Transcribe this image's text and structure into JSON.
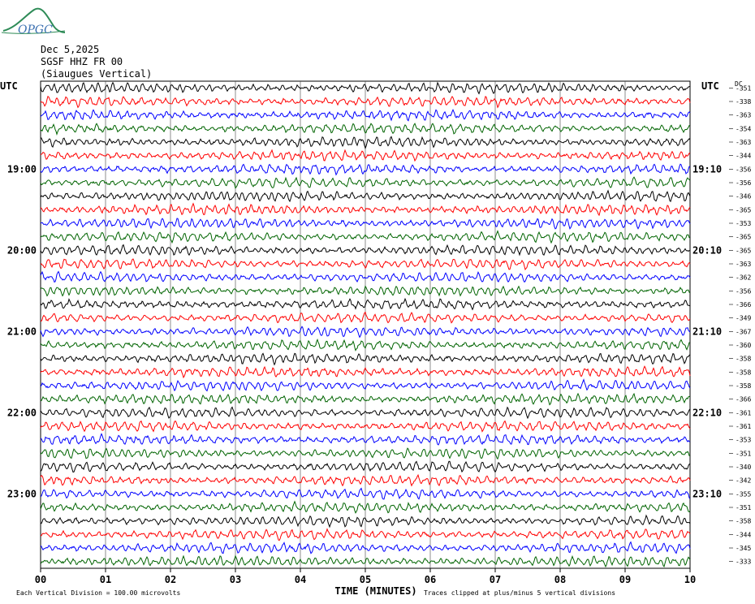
{
  "header": {
    "logo_text": "OPGC",
    "date": "Dec 5,2025",
    "station": "SGSF HHZ FR 00",
    "location": "(Siaugues Vertical)"
  },
  "axes": {
    "left_utc_label": "UTC",
    "right_utc_label": "UTC",
    "dc_label": "DC",
    "xlabel": "TIME (MINUTES)",
    "footer_left": "Each Vertical Division =  100.00 microvolts",
    "footer_right": "Traces clipped at plus/minus 5 vertical divisions"
  },
  "chart_data": {
    "type": "line",
    "title": "SGSF HHZ FR 00",
    "xlabel": "TIME (MINUTES)",
    "xlim": [
      0,
      10
    ],
    "x_ticks": [
      "00",
      "01",
      "02",
      "03",
      "04",
      "05",
      "06",
      "07",
      "08",
      "09",
      "10"
    ],
    "trace_colors": [
      "#000000",
      "#ff0000",
      "#0000ff",
      "#006400"
    ],
    "left_hour_labels": [
      "19:00",
      "20:00",
      "21:00",
      "22:00",
      "23:00"
    ],
    "right_hour_labels": [
      "19:10",
      "20:10",
      "21:10",
      "22:10",
      "23:10"
    ],
    "dc_offsets": [
      -351,
      -338,
      -363,
      -354,
      -363,
      -344,
      -356,
      -356,
      -346,
      -365,
      -353,
      -365,
      -365,
      -363,
      -362,
      -356,
      -366,
      -349,
      -367,
      -360,
      -358,
      -358,
      -358,
      -366,
      -361,
      -361,
      -353,
      -351,
      -340,
      -342,
      -355,
      -351,
      -358,
      -344,
      -345,
      -333
    ],
    "grid": "vertical minute lines",
    "vertical_division_microvolts": 100.0
  }
}
